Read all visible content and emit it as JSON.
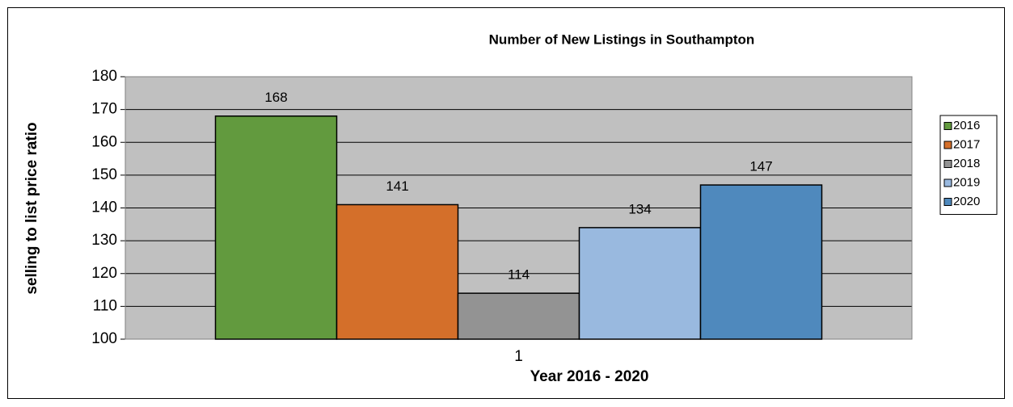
{
  "chart_data": {
    "type": "bar",
    "title": "Number of New Listings in Southampton",
    "x_label": "Year 2016 - 2020",
    "y_label": "selling to list price ratio",
    "categories": [
      "1"
    ],
    "series": [
      {
        "name": "2016",
        "color": "#629a3e",
        "values": [
          168
        ]
      },
      {
        "name": "2017",
        "color": "#d46f2a",
        "values": [
          141
        ]
      },
      {
        "name": "2018",
        "color": "#939393",
        "values": [
          114
        ]
      },
      {
        "name": "2019",
        "color": "#99b9df",
        "values": [
          134
        ]
      },
      {
        "name": "2020",
        "color": "#4f89bd",
        "values": [
          147
        ]
      }
    ],
    "ylim": [
      100,
      180
    ],
    "yticks": [
      100,
      110,
      120,
      130,
      140,
      150,
      160,
      170,
      180
    ],
    "grid": true,
    "legend": "right"
  }
}
